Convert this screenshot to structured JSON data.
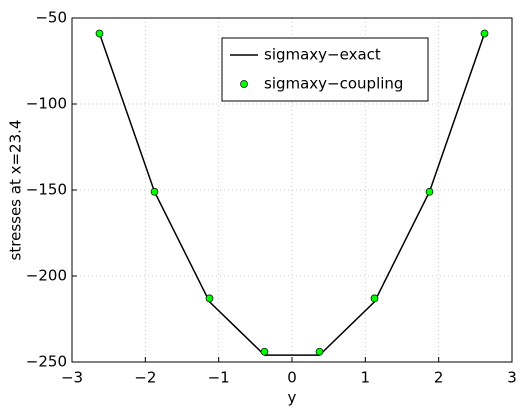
{
  "chart_data": {
    "type": "line",
    "x_label": "y",
    "y_label": "stresses at x=23.4",
    "x": [
      -2.625,
      -1.875,
      -1.125,
      -0.375,
      0.375,
      1.125,
      1.875,
      2.625
    ],
    "series": [
      {
        "name": "sigmaxy−exact",
        "color": "#000000",
        "style": "line",
        "values": [
          -59,
          -151,
          -215,
          -246,
          -246,
          -215,
          -151,
          -59
        ]
      },
      {
        "name": "sigmaxy−coupling",
        "color": "#00ff00",
        "style": "markers",
        "values": [
          -59,
          -151,
          -213,
          -244,
          -244,
          -213,
          -151,
          -59
        ]
      }
    ],
    "xlim": [
      -3,
      3
    ],
    "xticks": [
      {
        "value": -3,
        "label": "−3"
      },
      {
        "value": -2,
        "label": "−2"
      },
      {
        "value": -1,
        "label": "−1"
      },
      0,
      1,
      2,
      3
    ],
    "ylim": [
      -250,
      -50
    ],
    "yticks": [
      {
        "value": -250,
        "label": "−250"
      },
      {
        "value": -200,
        "label": "−200"
      },
      {
        "value": -150,
        "label": "−150"
      },
      {
        "value": -100,
        "label": "−100"
      },
      {
        "value": -50,
        "label": "−50"
      }
    ],
    "grid": true,
    "legend": "upper-center"
  }
}
